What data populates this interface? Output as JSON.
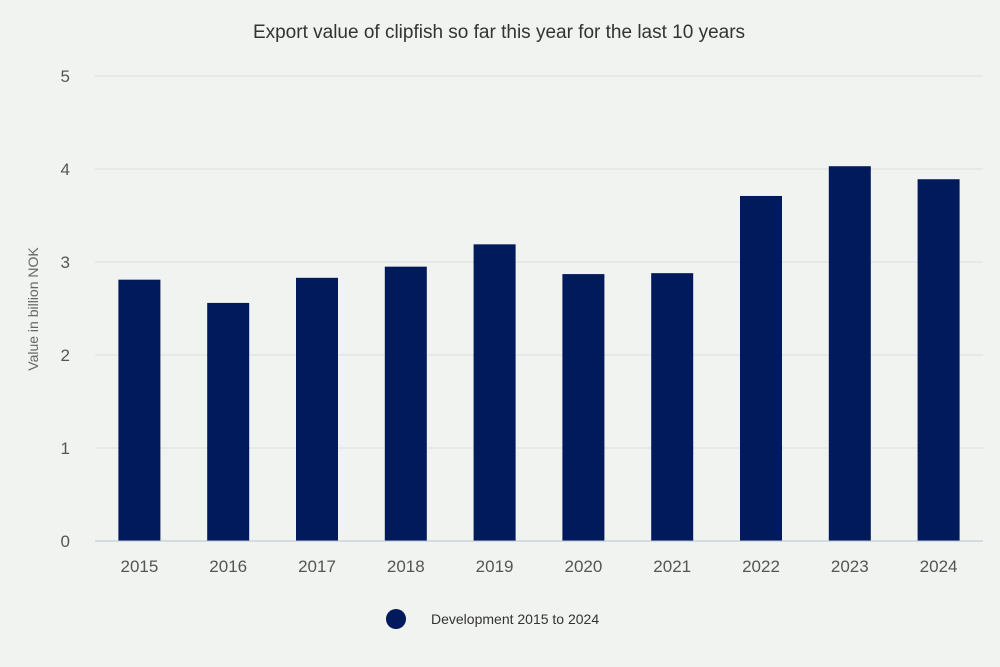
{
  "chart_data": {
    "type": "bar",
    "title": "Export value of clipfish so far this year for the last 10 years",
    "xlabel": "",
    "ylabel": "Value in billion NOK",
    "categories": [
      "2015",
      "2016",
      "2017",
      "2018",
      "2019",
      "2020",
      "2021",
      "2022",
      "2023",
      "2024"
    ],
    "series": [
      {
        "name": "Development 2015 to 2024",
        "values": [
          2.81,
          2.56,
          2.83,
          2.95,
          3.19,
          2.87,
          2.88,
          3.71,
          4.03,
          3.89
        ]
      }
    ],
    "ylim": [
      0,
      5
    ],
    "yticks": [
      "0",
      "1",
      "2",
      "3",
      "4",
      "5"
    ],
    "grid": true,
    "legend_position": "bottom",
    "colors": {
      "bar": "#001a5c",
      "background": "#f1f3f0"
    }
  }
}
